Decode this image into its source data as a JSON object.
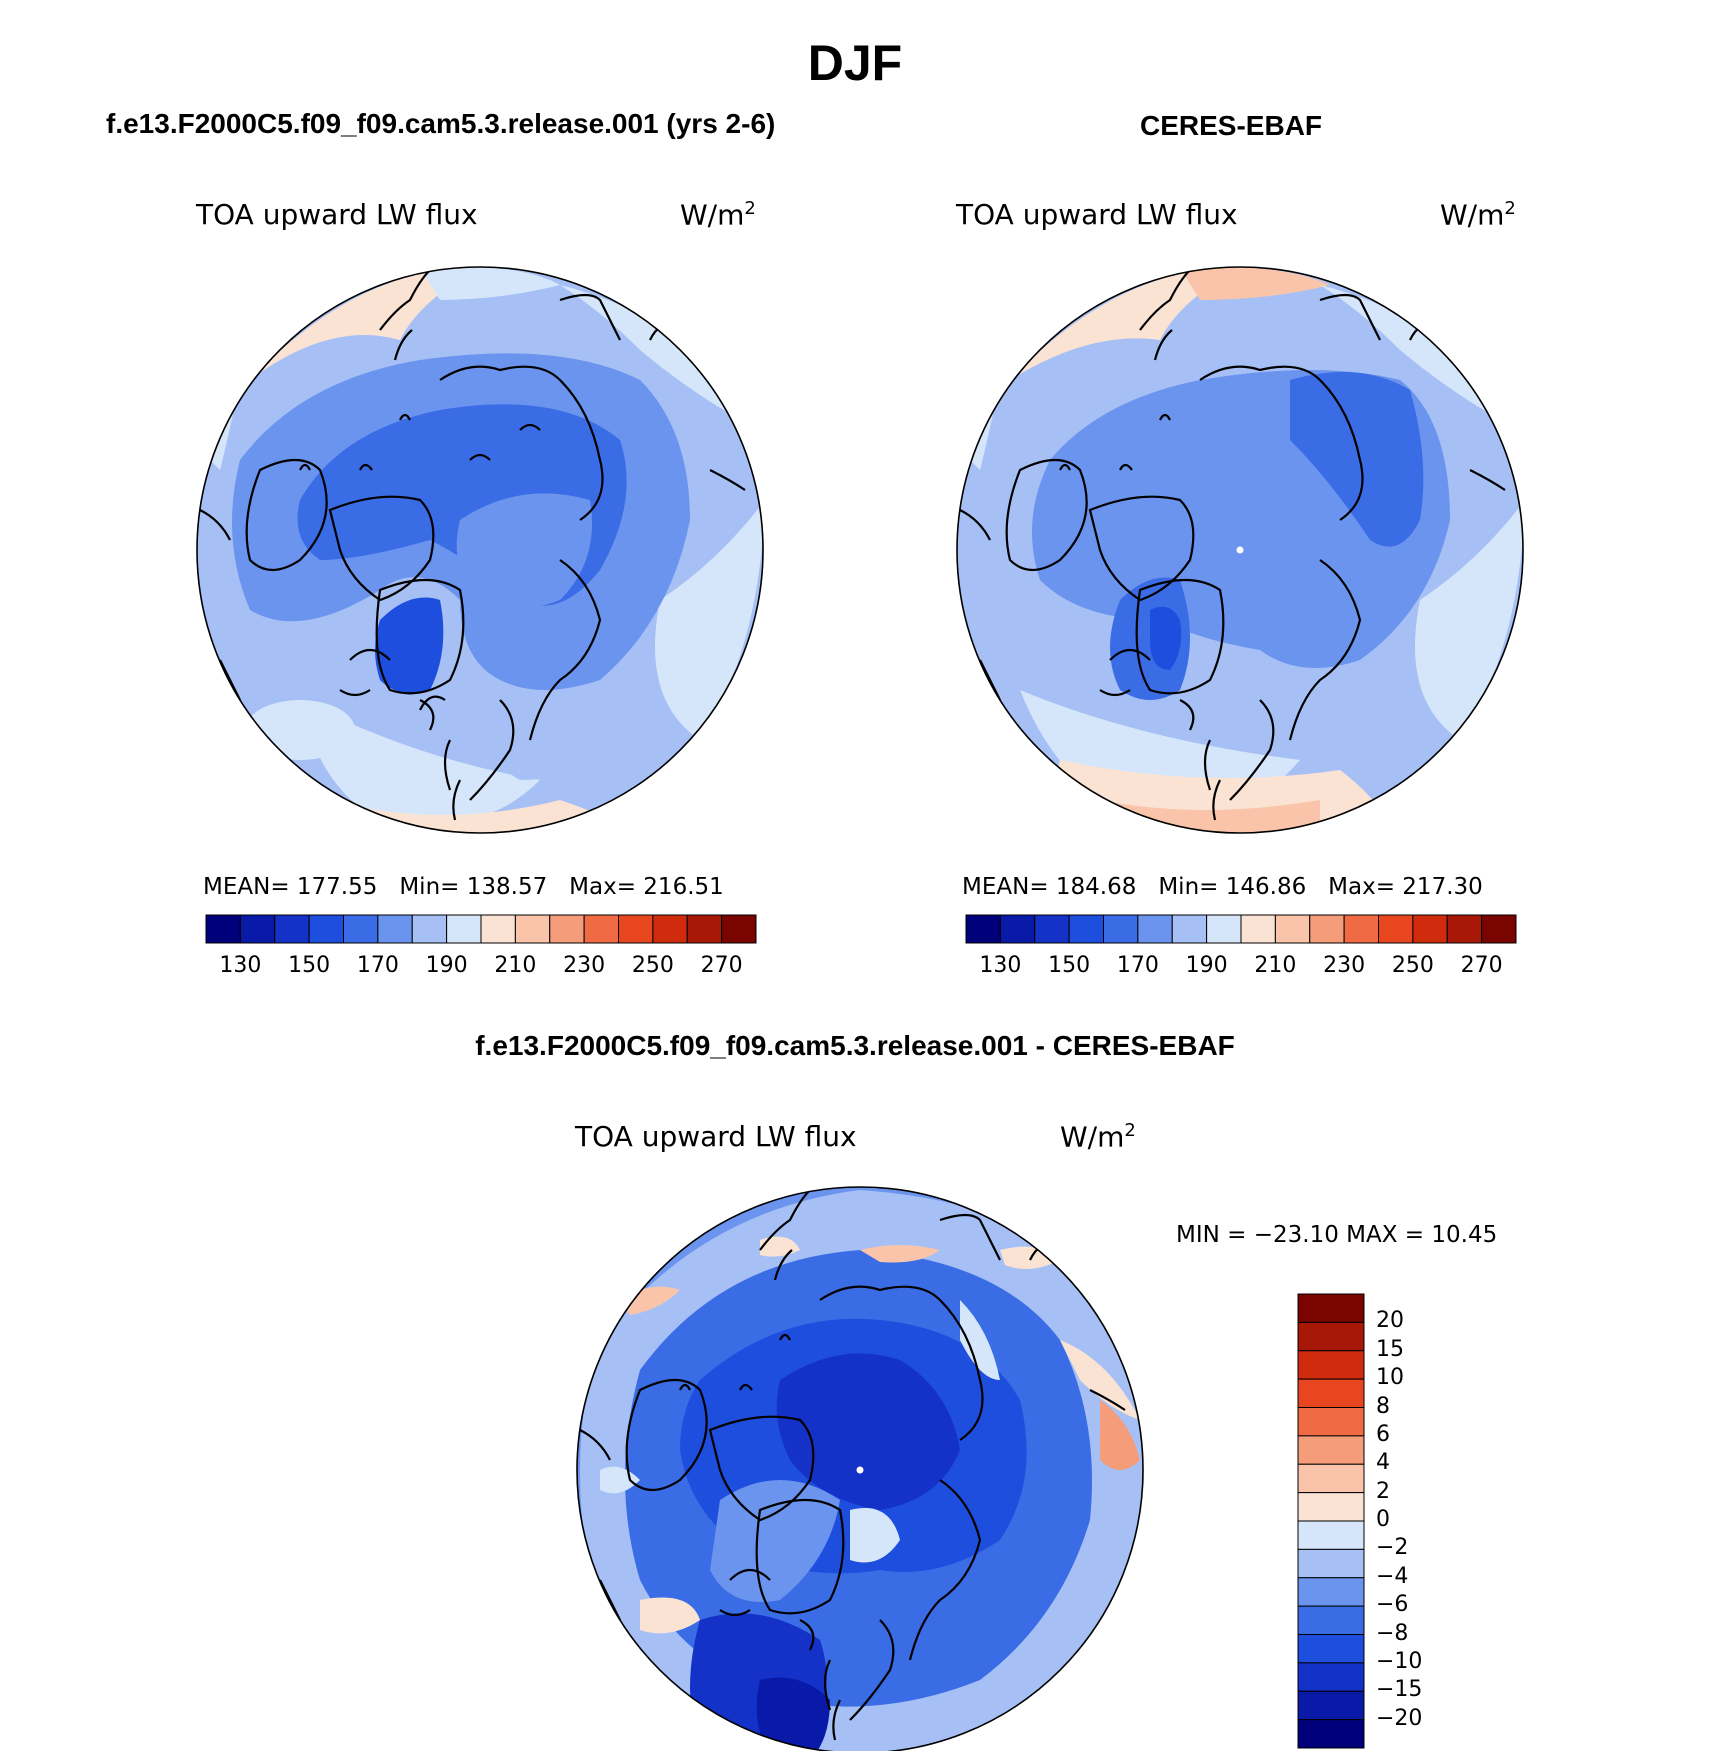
{
  "figure": {
    "title": "DJF",
    "panels": [
      {
        "id": "model",
        "title": "f.e13.F2000C5.f09_f09.cam5.3.release.001 (yrs 2-6)",
        "variable": "TOA upward LW flux",
        "units_base": "W/m",
        "units_exp": "2",
        "stats": {
          "mean_label": "MEAN=",
          "mean": "177.55",
          "min_label": "Min=",
          "min": "138.57",
          "max_label": "Max=",
          "max": "216.51"
        }
      },
      {
        "id": "obs",
        "title": "CERES-EBAF",
        "variable": "TOA upward LW flux",
        "units_base": "W/m",
        "units_exp": "2",
        "stats": {
          "mean_label": "MEAN=",
          "mean": "184.68",
          "min_label": "Min=",
          "min": "146.86",
          "max_label": "Max=",
          "max": "217.30"
        }
      },
      {
        "id": "diff",
        "title": "f.e13.F2000C5.f09_f09.cam5.3.release.001 - CERES-EBAF",
        "variable": "TOA upward LW flux",
        "units_base": "W/m",
        "units_exp": "2",
        "minmax_text": "MIN = −23.10 MAX =  10.45"
      }
    ],
    "abs_colorbar": {
      "colors": [
        "#00007a",
        "#0a1aa8",
        "#1432c8",
        "#1e4ede",
        "#3a6ce6",
        "#6b94ee",
        "#a6c0f5",
        "#d6e6fa",
        "#fbe3d4",
        "#f9c4aa",
        "#f59c7a",
        "#f06a44",
        "#e8461f",
        "#cf2b0c",
        "#a81806",
        "#7a0500"
      ],
      "ticks": [
        "130",
        "150",
        "170",
        "190",
        "210",
        "230",
        "250",
        "270"
      ]
    },
    "diff_colorbar": {
      "colors": [
        "#7a0500",
        "#a81806",
        "#cf2b0c",
        "#e8461f",
        "#f06a44",
        "#f59c7a",
        "#f9c4aa",
        "#fbe3d4",
        "#d6e6fa",
        "#a6c0f5",
        "#6b94ee",
        "#3a6ce6",
        "#1e4ede",
        "#1432c8",
        "#0a1aa8",
        "#00007a"
      ],
      "ticks": [
        "20",
        "15",
        "10",
        "8",
        "6",
        "4",
        "2",
        "0",
        "−2",
        "−4",
        "−6",
        "−8",
        "−10",
        "−15",
        "−20"
      ]
    }
  }
}
